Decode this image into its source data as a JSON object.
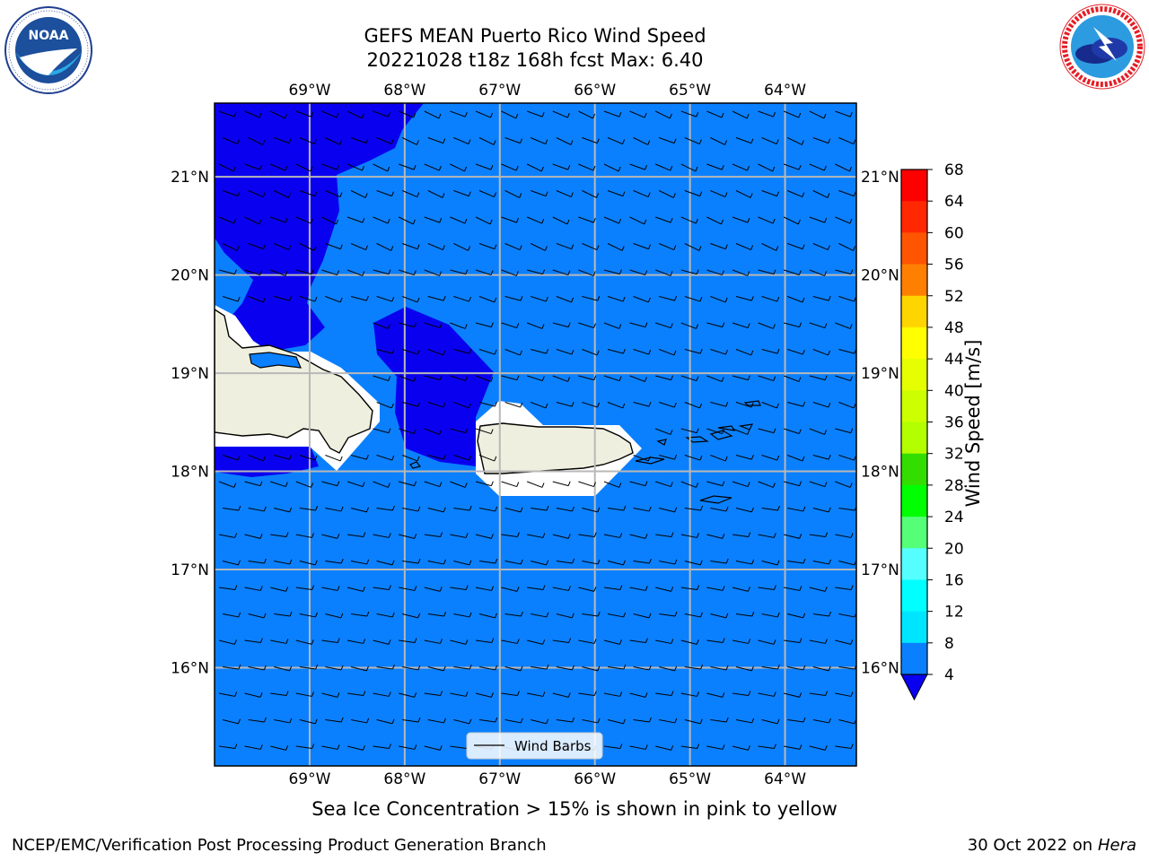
{
  "header": {
    "title_line1": "GEFS MEAN Puerto Rico Wind Speed",
    "title_line2": "20221028 t18z 168h fcst   Max: 6.40"
  },
  "logos": {
    "noaa": {
      "text": "NOAA",
      "ring_text": "NATIONAL OCEANIC AND ATMOSPHERIC ADMINISTRATION · U.S. DEPARTMENT OF COMMERCE"
    },
    "nws": {
      "ring_text": "NATIONAL WEATHER SERVICE"
    }
  },
  "map": {
    "lon_range": [
      -70,
      -63.25
    ],
    "lat_range": [
      15,
      21.75
    ],
    "lon_ticks": [
      "69°W",
      "68°W",
      "67°W",
      "66°W",
      "65°W",
      "64°W"
    ],
    "lat_ticks": [
      "21°N",
      "20°N",
      "19°N",
      "18°N",
      "17°N",
      "16°N"
    ],
    "grid": true,
    "ocean_color": "#0a80ff",
    "low_wind_color": "#0a00f0",
    "land_color": "#efefdf",
    "legend_label": "Wind Barbs",
    "legend_placement": "bottom-center"
  },
  "colorbar": {
    "label": "Wind Speed [m/s]",
    "ticks": [
      "68",
      "64",
      "60",
      "56",
      "52",
      "48",
      "44",
      "40",
      "36",
      "32",
      "28",
      "24",
      "20",
      "16",
      "12",
      "8",
      "4"
    ],
    "colors": [
      "#ff0000",
      "#ff2800",
      "#ff5500",
      "#ff8000",
      "#ffab00",
      "#ffd500",
      "#ffff00",
      "#e6ff00",
      "#ccff00",
      "#b3ff00",
      "#33dd00",
      "#00ff00",
      "#55ff77",
      "#aaffee",
      "#55ffff",
      "#00ffff",
      "#00e5ff",
      "#0a80ff"
    ],
    "extend_min_color": "#0a00f0"
  },
  "caption": "Sea Ice Concentration > 15% is shown in pink to yellow",
  "footer": {
    "left": "NCEP/EMC/Verification Post Processing Product Generation Branch",
    "right_date": "30 Oct 2022 on ",
    "right_host": "Hera"
  }
}
